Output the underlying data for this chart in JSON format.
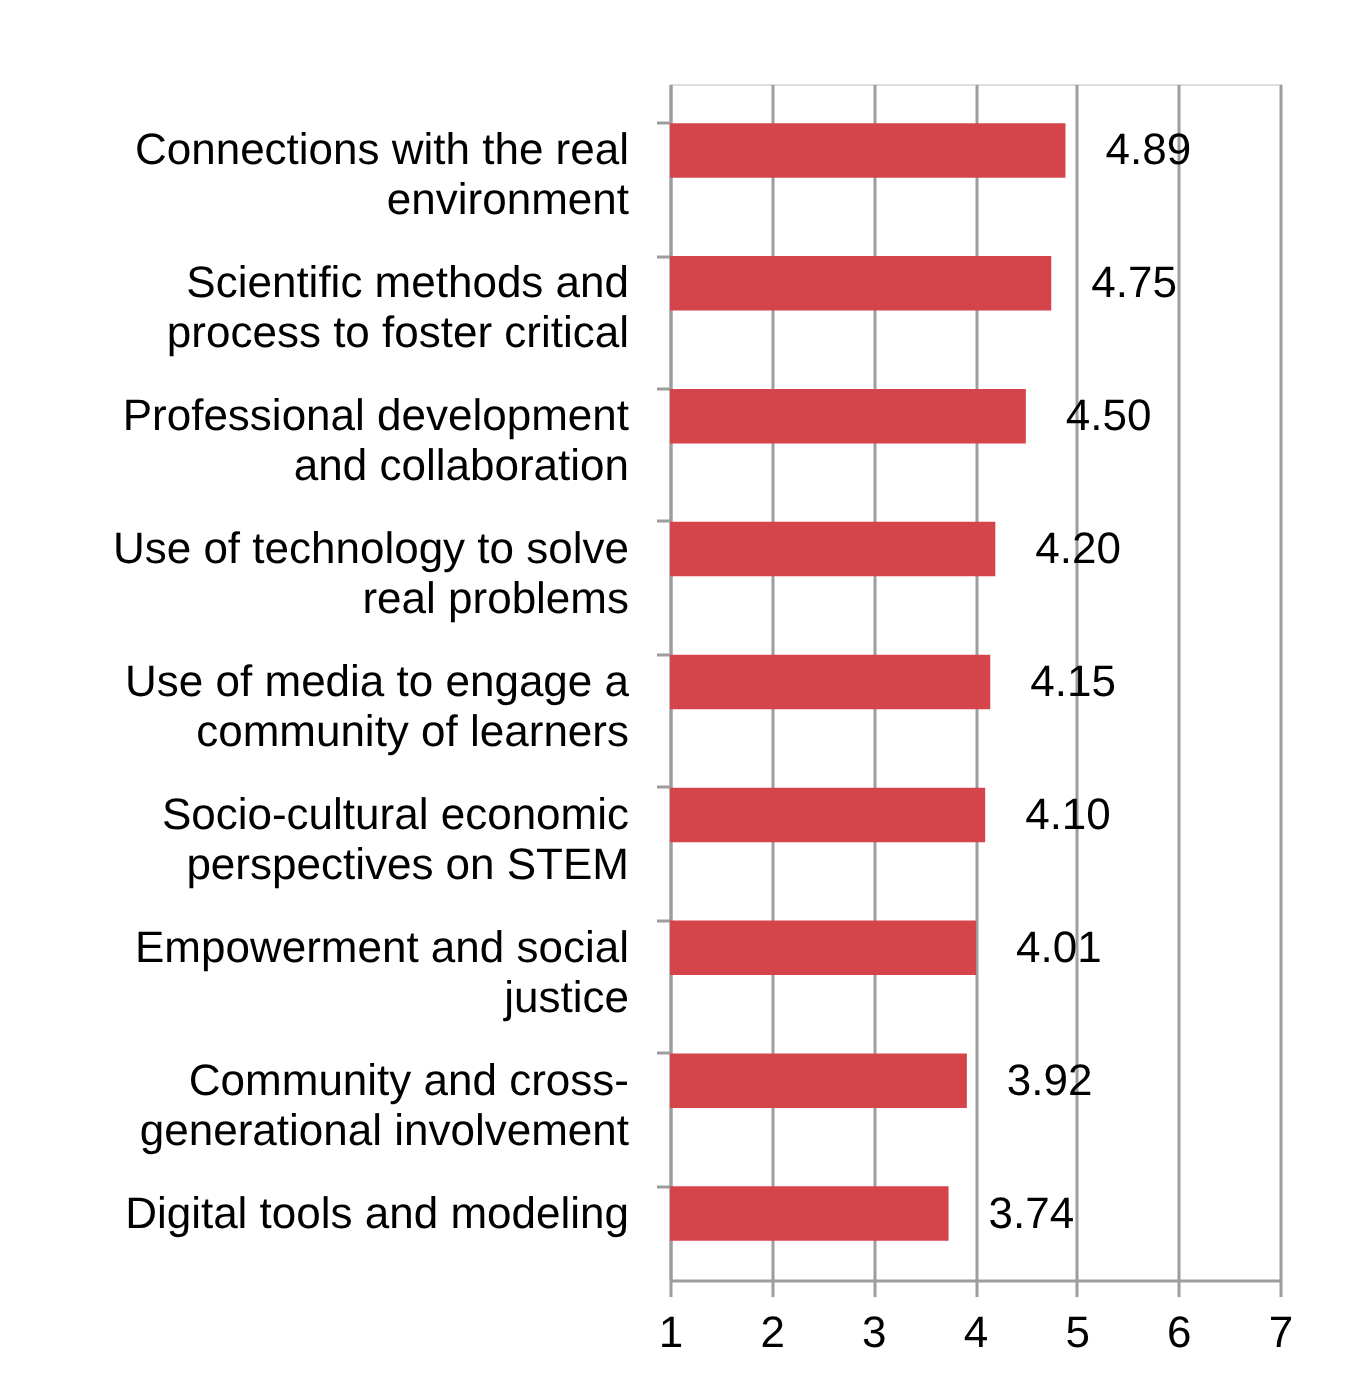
{
  "chart_data": {
    "type": "bar",
    "orientation": "horizontal",
    "categories": [
      "Connections with the real environment",
      "Scientific methods and process to foster critical",
      "Professional development and collaboration",
      "Use of technology to solve real problems",
      "Use of media to engage a community of learners",
      "Socio-cultural economic perspectives on STEM",
      "Empowerment and social justice",
      "Community and cross-generational involvement",
      "Digital tools and modeling"
    ],
    "values": [
      4.89,
      4.75,
      4.5,
      4.2,
      4.15,
      4.1,
      4.01,
      3.92,
      3.74
    ],
    "value_labels": [
      "4.89",
      "4.75",
      "4.50",
      "4.20",
      "4.15",
      "4.10",
      "4.01",
      "3.92",
      "3.74"
    ],
    "color": "#d5444a",
    "xlim": [
      1,
      7
    ],
    "xticks": [
      1,
      2,
      3,
      4,
      5,
      6,
      7
    ],
    "grid": "x"
  }
}
